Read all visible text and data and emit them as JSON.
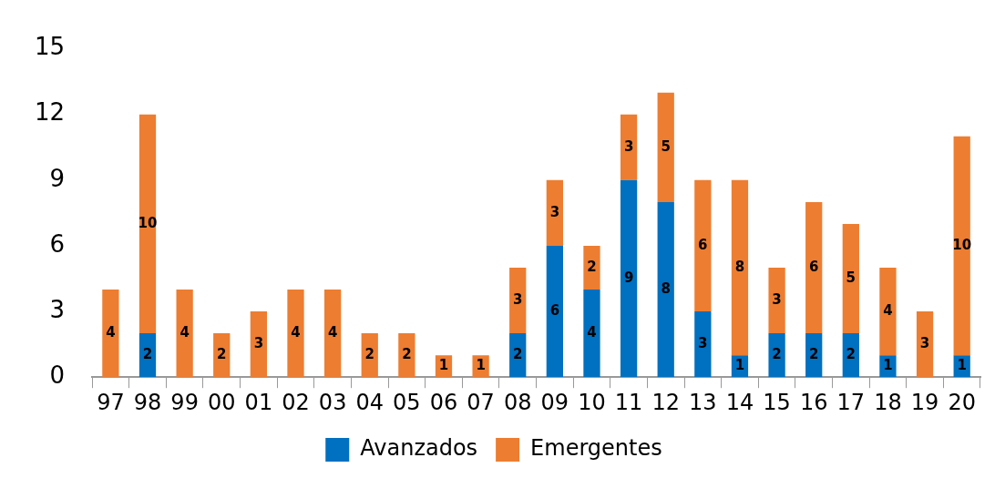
{
  "chart_data": {
    "type": "bar",
    "stacked": true,
    "categories": [
      "97",
      "98",
      "99",
      "00",
      "01",
      "02",
      "03",
      "04",
      "05",
      "06",
      "07",
      "08",
      "09",
      "10",
      "11",
      "12",
      "13",
      "14",
      "15",
      "16",
      "17",
      "18",
      "19",
      "20"
    ],
    "series": [
      {
        "name": "Avanzados",
        "color": "#0070c0",
        "values": [
          null,
          2,
          null,
          null,
          null,
          null,
          null,
          null,
          null,
          null,
          null,
          2,
          6,
          4,
          9,
          8,
          3,
          1,
          2,
          2,
          2,
          1,
          null,
          1
        ]
      },
      {
        "name": "Emergentes",
        "color": "#ed7d31",
        "values": [
          4,
          10,
          4,
          2,
          3,
          4,
          4,
          2,
          2,
          1,
          1,
          3,
          3,
          2,
          3,
          5,
          6,
          8,
          3,
          6,
          5,
          4,
          3,
          10
        ]
      }
    ],
    "ylim": [
      0,
      15
    ],
    "yticks": [
      0,
      3,
      6,
      9,
      12,
      15
    ],
    "grid": false,
    "legend": "bottom",
    "data_labels": true
  }
}
